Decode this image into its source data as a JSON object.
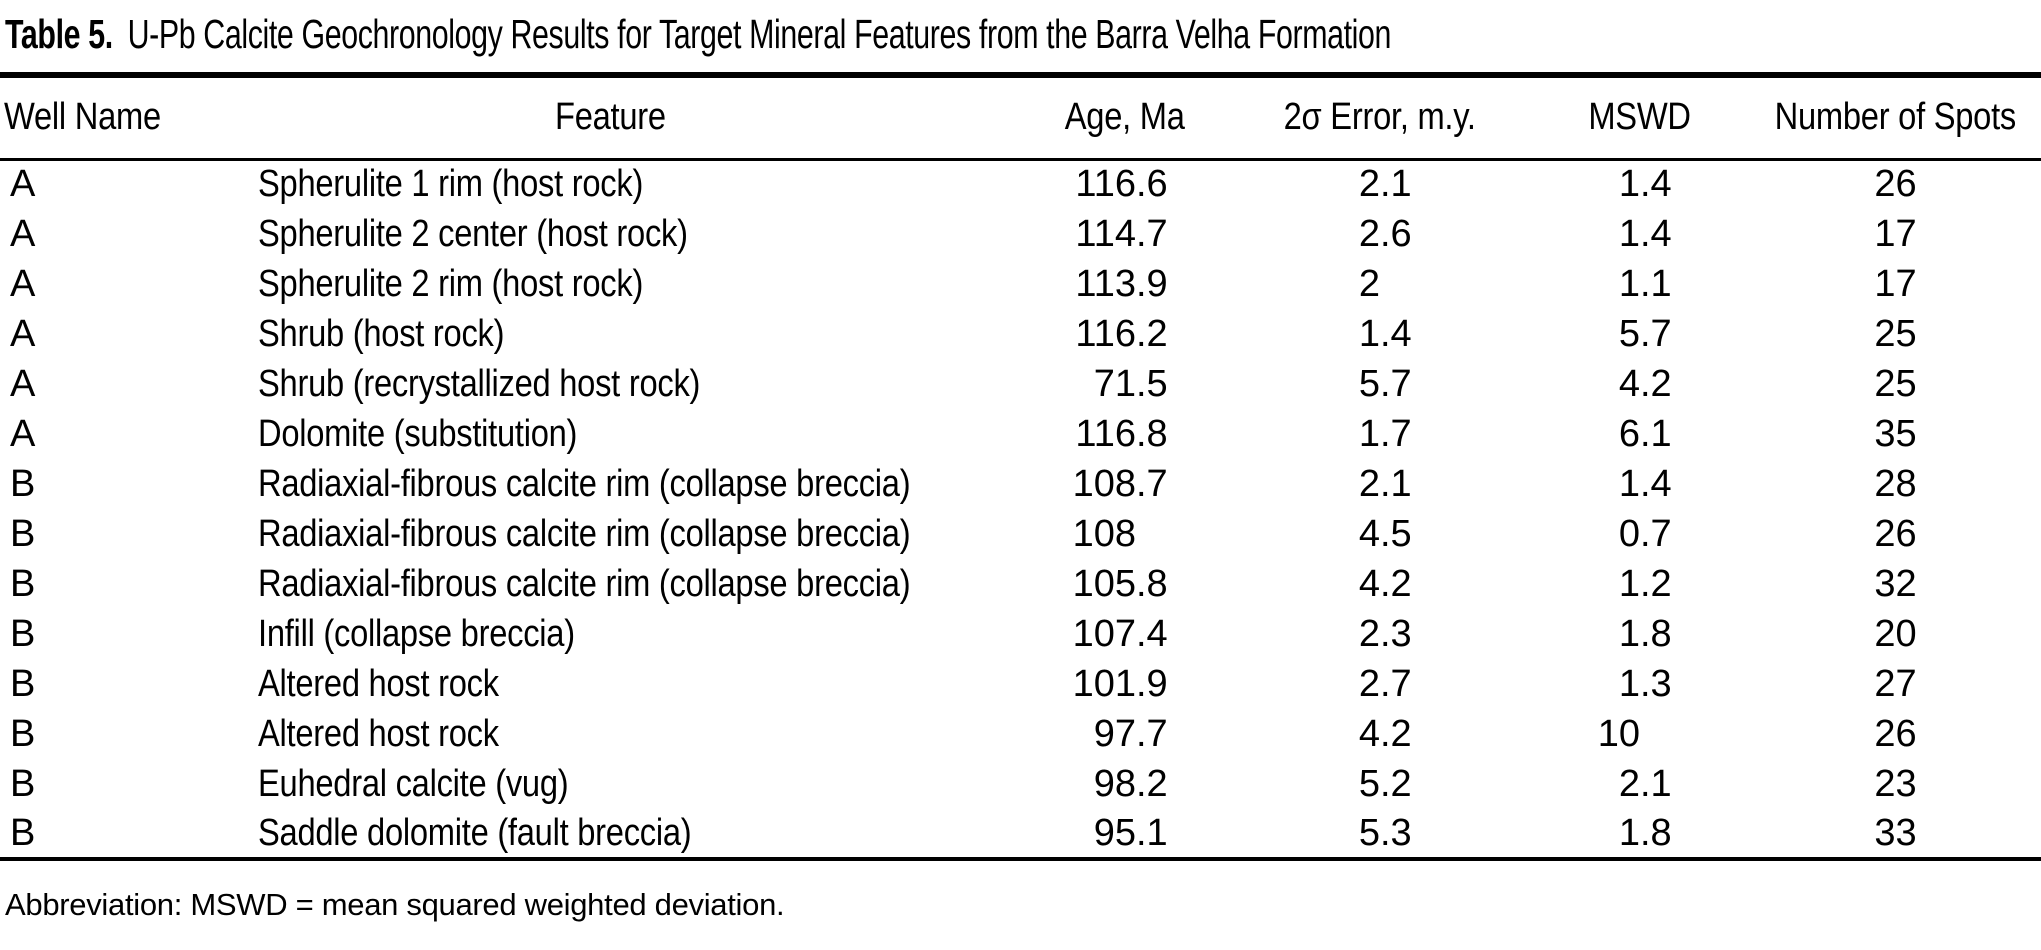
{
  "colors": {
    "text": "#000000",
    "background": "#ffffff",
    "rule": "#000000"
  },
  "caption": {
    "label": "Table 5.",
    "title": "U-Pb Calcite Geochronology Results for Target Mineral Features from the Barra Velha Formation"
  },
  "table": {
    "columns": [
      "Well Name",
      "Feature",
      "Age, Ma",
      "2σ Error, m.y.",
      "MSWD",
      "Number of Spots"
    ],
    "rows": [
      {
        "well": "A",
        "feature": "Spherulite 1 rim (host rock)",
        "age_ma": "116.6",
        "error_2sigma_my": "2.1",
        "mswd": "1.4",
        "spots": "26"
      },
      {
        "well": "A",
        "feature": "Spherulite 2 center (host rock)",
        "age_ma": "114.7",
        "error_2sigma_my": "2.6",
        "mswd": "1.4",
        "spots": "17"
      },
      {
        "well": "A",
        "feature": "Spherulite 2 rim (host rock)",
        "age_ma": "113.9",
        "error_2sigma_my": "2",
        "mswd": "1.1",
        "spots": "17"
      },
      {
        "well": "A",
        "feature": "Shrub (host rock)",
        "age_ma": "116.2",
        "error_2sigma_my": "1.4",
        "mswd": "5.7",
        "spots": "25"
      },
      {
        "well": "A",
        "feature": "Shrub (recrystallized host rock)",
        "age_ma": "71.5",
        "error_2sigma_my": "5.7",
        "mswd": "4.2",
        "spots": "25"
      },
      {
        "well": "A",
        "feature": "Dolomite (substitution)",
        "age_ma": "116.8",
        "error_2sigma_my": "1.7",
        "mswd": "6.1",
        "spots": "35"
      },
      {
        "well": "B",
        "feature": "Radiaxial-fibrous calcite rim (collapse breccia)",
        "age_ma": "108.7",
        "error_2sigma_my": "2.1",
        "mswd": "1.4",
        "spots": "28"
      },
      {
        "well": "B",
        "feature": "Radiaxial-fibrous calcite rim (collapse breccia)",
        "age_ma": "108",
        "error_2sigma_my": "4.5",
        "mswd": "0.7",
        "spots": "26"
      },
      {
        "well": "B",
        "feature": "Radiaxial-fibrous calcite rim (collapse breccia)",
        "age_ma": "105.8",
        "error_2sigma_my": "4.2",
        "mswd": "1.2",
        "spots": "32"
      },
      {
        "well": "B",
        "feature": "Infill (collapse breccia)",
        "age_ma": "107.4",
        "error_2sigma_my": "2.3",
        "mswd": "1.8",
        "spots": "20"
      },
      {
        "well": "B",
        "feature": "Altered host rock",
        "age_ma": "101.9",
        "error_2sigma_my": "2.7",
        "mswd": "1.3",
        "spots": "27"
      },
      {
        "well": "B",
        "feature": "Altered host rock",
        "age_ma": "97.7",
        "error_2sigma_my": "4.2",
        "mswd": "10",
        "spots": "26"
      },
      {
        "well": "B",
        "feature": "Euhedral calcite (vug)",
        "age_ma": "98.2",
        "error_2sigma_my": "5.2",
        "mswd": "2.1",
        "spots": "23"
      },
      {
        "well": "B",
        "feature": "Saddle dolomite (fault breccia)",
        "age_ma": "95.1",
        "error_2sigma_my": "5.3",
        "mswd": "1.8",
        "spots": "33"
      }
    ]
  },
  "footnote": "Abbreviation: MSWD = mean squared weighted deviation."
}
